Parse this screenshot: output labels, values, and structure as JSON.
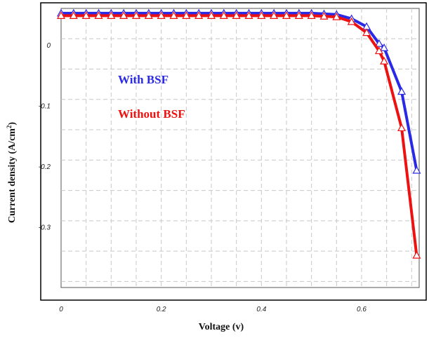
{
  "chart_data": {
    "type": "line",
    "title": "",
    "xlabel": "Voltage (v)",
    "ylabel_prefix": "Current density (A/cm",
    "ylabel_sup": "2",
    "ylabel_suffix": ")",
    "xlim": [
      0,
      0.715
    ],
    "ylim": [
      -0.4,
      0.06
    ],
    "x_ticks": [
      0,
      0.2,
      0.4,
      0.6
    ],
    "x_tick_labels": [
      "0",
      "0.2",
      "0.4",
      "0.6"
    ],
    "y_ticks": [
      0,
      -0.1,
      -0.2,
      -0.3
    ],
    "y_tick_labels": [
      "0",
      "-0.1",
      "-0.2",
      "-0.3"
    ],
    "grid": true,
    "grid_style": "dashed",
    "legend_placement": "inside-top-left",
    "series": [
      {
        "name": "With BSF",
        "color": "#2a2ae6",
        "x": [
          0,
          0.025,
          0.05,
          0.075,
          0.1,
          0.125,
          0.15,
          0.175,
          0.2,
          0.225,
          0.25,
          0.275,
          0.3,
          0.325,
          0.35,
          0.375,
          0.4,
          0.425,
          0.45,
          0.475,
          0.5,
          0.525,
          0.55,
          0.58,
          0.61,
          0.635,
          0.645,
          0.68,
          0.71
        ],
        "y": [
          0.052,
          0.052,
          0.052,
          0.052,
          0.052,
          0.052,
          0.052,
          0.052,
          0.052,
          0.052,
          0.052,
          0.052,
          0.052,
          0.052,
          0.052,
          0.052,
          0.052,
          0.052,
          0.052,
          0.052,
          0.052,
          0.051,
          0.05,
          0.043,
          0.03,
          0.002,
          -0.005,
          -0.077,
          -0.207
        ]
      },
      {
        "name": "Without BSF",
        "color": "#ee1111",
        "x": [
          0,
          0.025,
          0.05,
          0.075,
          0.1,
          0.125,
          0.15,
          0.175,
          0.2,
          0.225,
          0.25,
          0.275,
          0.3,
          0.325,
          0.35,
          0.375,
          0.4,
          0.425,
          0.45,
          0.475,
          0.5,
          0.525,
          0.55,
          0.58,
          0.61,
          0.635,
          0.645,
          0.68,
          0.71
        ],
        "y": [
          0.048,
          0.048,
          0.048,
          0.048,
          0.048,
          0.048,
          0.048,
          0.048,
          0.048,
          0.048,
          0.048,
          0.048,
          0.048,
          0.048,
          0.048,
          0.048,
          0.048,
          0.048,
          0.048,
          0.048,
          0.048,
          0.047,
          0.046,
          0.038,
          0.02,
          -0.01,
          -0.027,
          -0.137,
          -0.347
        ]
      }
    ]
  }
}
